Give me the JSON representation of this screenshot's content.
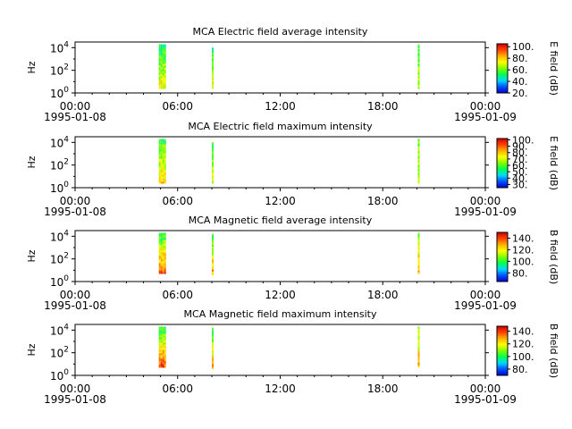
{
  "figure": {
    "background": "#ffffff",
    "colormap": [
      "#0000c8",
      "#0050ff",
      "#00d8ff",
      "#00ff50",
      "#80ff00",
      "#ffff00",
      "#ffb000",
      "#ff4000",
      "#d00000"
    ]
  },
  "chart_data": [
    {
      "type": "heatmap",
      "title": "MCA  Electric field average intensity",
      "ylabel": "Hz",
      "y_scale": "log",
      "y_ticks": [
        {
          "base": "10",
          "exp": "0"
        },
        {
          "base": "10",
          "exp": "2"
        },
        {
          "base": "10",
          "exp": "4"
        }
      ],
      "x_ticks": [
        {
          "time": "00:00",
          "date": "1995-01-08"
        },
        {
          "time": "06:00",
          "date": ""
        },
        {
          "time": "12:00",
          "date": ""
        },
        {
          "time": "18:00",
          "date": ""
        },
        {
          "time": "00:00",
          "date": "1995-01-09"
        }
      ],
      "xlim_hours": [
        0,
        24
      ],
      "ylim_log10": [
        0,
        4.5
      ],
      "colorbar": {
        "label": "E field (dB)",
        "range": [
          20,
          105
        ],
        "ticks": [
          "20.",
          "40.",
          "60.",
          "80.",
          "100."
        ],
        "tick_values": [
          20,
          40,
          60,
          80,
          100
        ]
      },
      "bursts": [
        {
          "t_start_h": 4.9,
          "t_end_h": 5.3,
          "f_min_log10": 0.4,
          "f_max_log10": 4.3,
          "level_range": [
            0.2,
            0.65
          ]
        },
        {
          "t_start_h": 8.0,
          "t_end_h": 8.1,
          "f_min_log10": 0.5,
          "f_max_log10": 4.0,
          "level_range": [
            0.25,
            0.6
          ]
        },
        {
          "t_start_h": 20.05,
          "t_end_h": 20.15,
          "f_min_log10": 0.4,
          "f_max_log10": 4.3,
          "level_range": [
            0.35,
            0.55
          ]
        }
      ]
    },
    {
      "type": "heatmap",
      "title": "MCA  Electric field maximum intensity",
      "ylabel": "Hz",
      "y_scale": "log",
      "y_ticks": [
        {
          "base": "10",
          "exp": "0"
        },
        {
          "base": "10",
          "exp": "2"
        },
        {
          "base": "10",
          "exp": "4"
        }
      ],
      "x_ticks": [
        {
          "time": "00:00",
          "date": "1995-01-08"
        },
        {
          "time": "06:00",
          "date": ""
        },
        {
          "time": "12:00",
          "date": ""
        },
        {
          "time": "18:00",
          "date": ""
        },
        {
          "time": "00:00",
          "date": "1995-01-09"
        }
      ],
      "xlim_hours": [
        0,
        24
      ],
      "ylim_log10": [
        0,
        4.5
      ],
      "colorbar": {
        "label": "E field (dB)",
        "range": [
          25,
          102
        ],
        "ticks": [
          "30.",
          "40.",
          "50.",
          "60.",
          "70.",
          "80.",
          "90.",
          "100."
        ],
        "tick_values": [
          30,
          40,
          50,
          60,
          70,
          80,
          90,
          100
        ]
      },
      "bursts": [
        {
          "t_start_h": 4.9,
          "t_end_h": 5.3,
          "f_min_log10": 0.4,
          "f_max_log10": 4.3,
          "level_range": [
            0.25,
            0.7
          ]
        },
        {
          "t_start_h": 8.0,
          "t_end_h": 8.1,
          "f_min_log10": 0.5,
          "f_max_log10": 4.0,
          "level_range": [
            0.3,
            0.6
          ]
        },
        {
          "t_start_h": 20.05,
          "t_end_h": 20.15,
          "f_min_log10": 0.4,
          "f_max_log10": 4.3,
          "level_range": [
            0.35,
            0.6
          ]
        }
      ]
    },
    {
      "type": "heatmap",
      "title": "MCA  Magnetic field average intensity",
      "ylabel": "Hz",
      "y_scale": "log",
      "y_ticks": [
        {
          "base": "10",
          "exp": "0"
        },
        {
          "base": "10",
          "exp": "2"
        },
        {
          "base": "10",
          "exp": "4"
        }
      ],
      "x_ticks": [
        {
          "time": "00:00",
          "date": "1995-01-08"
        },
        {
          "time": "06:00",
          "date": ""
        },
        {
          "time": "12:00",
          "date": ""
        },
        {
          "time": "18:00",
          "date": ""
        },
        {
          "time": "00:00",
          "date": "1995-01-09"
        }
      ],
      "xlim_hours": [
        0,
        24
      ],
      "ylim_log10": [
        0,
        4.5
      ],
      "colorbar": {
        "label": "B field (dB)",
        "range": [
          65,
          150
        ],
        "ticks": [
          "80.",
          "100.",
          "120.",
          "140."
        ],
        "tick_values": [
          80,
          100,
          120,
          140
        ]
      },
      "bursts": [
        {
          "t_start_h": 4.9,
          "t_end_h": 5.3,
          "f_min_log10": 0.7,
          "f_max_log10": 4.3,
          "level_range": [
            0.1,
            0.9
          ]
        },
        {
          "t_start_h": 8.0,
          "t_end_h": 8.1,
          "f_min_log10": 0.7,
          "f_max_log10": 4.2,
          "level_range": [
            0.15,
            0.8
          ]
        },
        {
          "t_start_h": 20.05,
          "t_end_h": 20.15,
          "f_min_log10": 0.7,
          "f_max_log10": 4.3,
          "level_range": [
            0.35,
            0.75
          ]
        }
      ]
    },
    {
      "type": "heatmap",
      "title": "MCA  Magnetic field maximum intensity",
      "ylabel": "Hz",
      "y_scale": "log",
      "y_ticks": [
        {
          "base": "10",
          "exp": "0"
        },
        {
          "base": "10",
          "exp": "2"
        },
        {
          "base": "10",
          "exp": "4"
        }
      ],
      "x_ticks": [
        {
          "time": "00:00",
          "date": "1995-01-08"
        },
        {
          "time": "06:00",
          "date": ""
        },
        {
          "time": "12:00",
          "date": ""
        },
        {
          "time": "18:00",
          "date": ""
        },
        {
          "time": "00:00",
          "date": "1995-01-09"
        }
      ],
      "xlim_hours": [
        0,
        24
      ],
      "ylim_log10": [
        0,
        4.5
      ],
      "colorbar": {
        "label": "B field (dB)",
        "range": [
          70,
          148
        ],
        "ticks": [
          "80.",
          "100.",
          "120.",
          "140."
        ],
        "tick_values": [
          80,
          100,
          120,
          140
        ]
      },
      "bursts": [
        {
          "t_start_h": 4.9,
          "t_end_h": 5.3,
          "f_min_log10": 0.7,
          "f_max_log10": 4.3,
          "level_range": [
            0.1,
            0.9
          ]
        },
        {
          "t_start_h": 8.0,
          "t_end_h": 8.1,
          "f_min_log10": 0.7,
          "f_max_log10": 4.2,
          "level_range": [
            0.15,
            0.8
          ]
        },
        {
          "t_start_h": 20.05,
          "t_end_h": 20.15,
          "f_min_log10": 0.7,
          "f_max_log10": 4.3,
          "level_range": [
            0.35,
            0.75
          ]
        }
      ]
    }
  ]
}
